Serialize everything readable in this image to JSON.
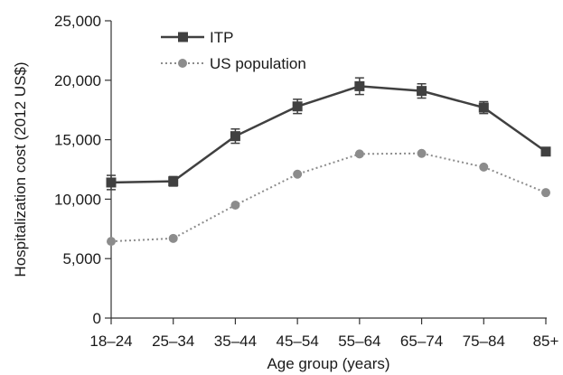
{
  "chart_data": {
    "type": "line",
    "title": "",
    "xlabel": "Age group (years)",
    "ylabel": "Hospitalization cost (2012 US$)",
    "categories": [
      "18–24",
      "25–34",
      "35–44",
      "45–54",
      "55–64",
      "65–74",
      "75–84",
      "85+"
    ],
    "ylim": [
      0,
      25000
    ],
    "yticks": [
      0,
      5000,
      10000,
      15000,
      20000,
      25000
    ],
    "ytick_labels": [
      "0",
      "5,000",
      "10,000",
      "15,000",
      "20,000",
      "25,000"
    ],
    "grid": false,
    "legend_position": "top-left",
    "series": [
      {
        "name": "ITP",
        "values": [
          11400,
          11500,
          15300,
          17800,
          19500,
          19100,
          17700,
          14000
        ],
        "error": [
          600,
          400,
          600,
          600,
          700,
          600,
          500,
          300
        ],
        "color": "#404040",
        "line_style": "solid",
        "marker": "square"
      },
      {
        "name": "US population",
        "values": [
          6450,
          6700,
          9500,
          12100,
          13800,
          13850,
          12700,
          10550
        ],
        "color": "#8c8c8c",
        "line_style": "dotted",
        "marker": "circle"
      }
    ]
  }
}
